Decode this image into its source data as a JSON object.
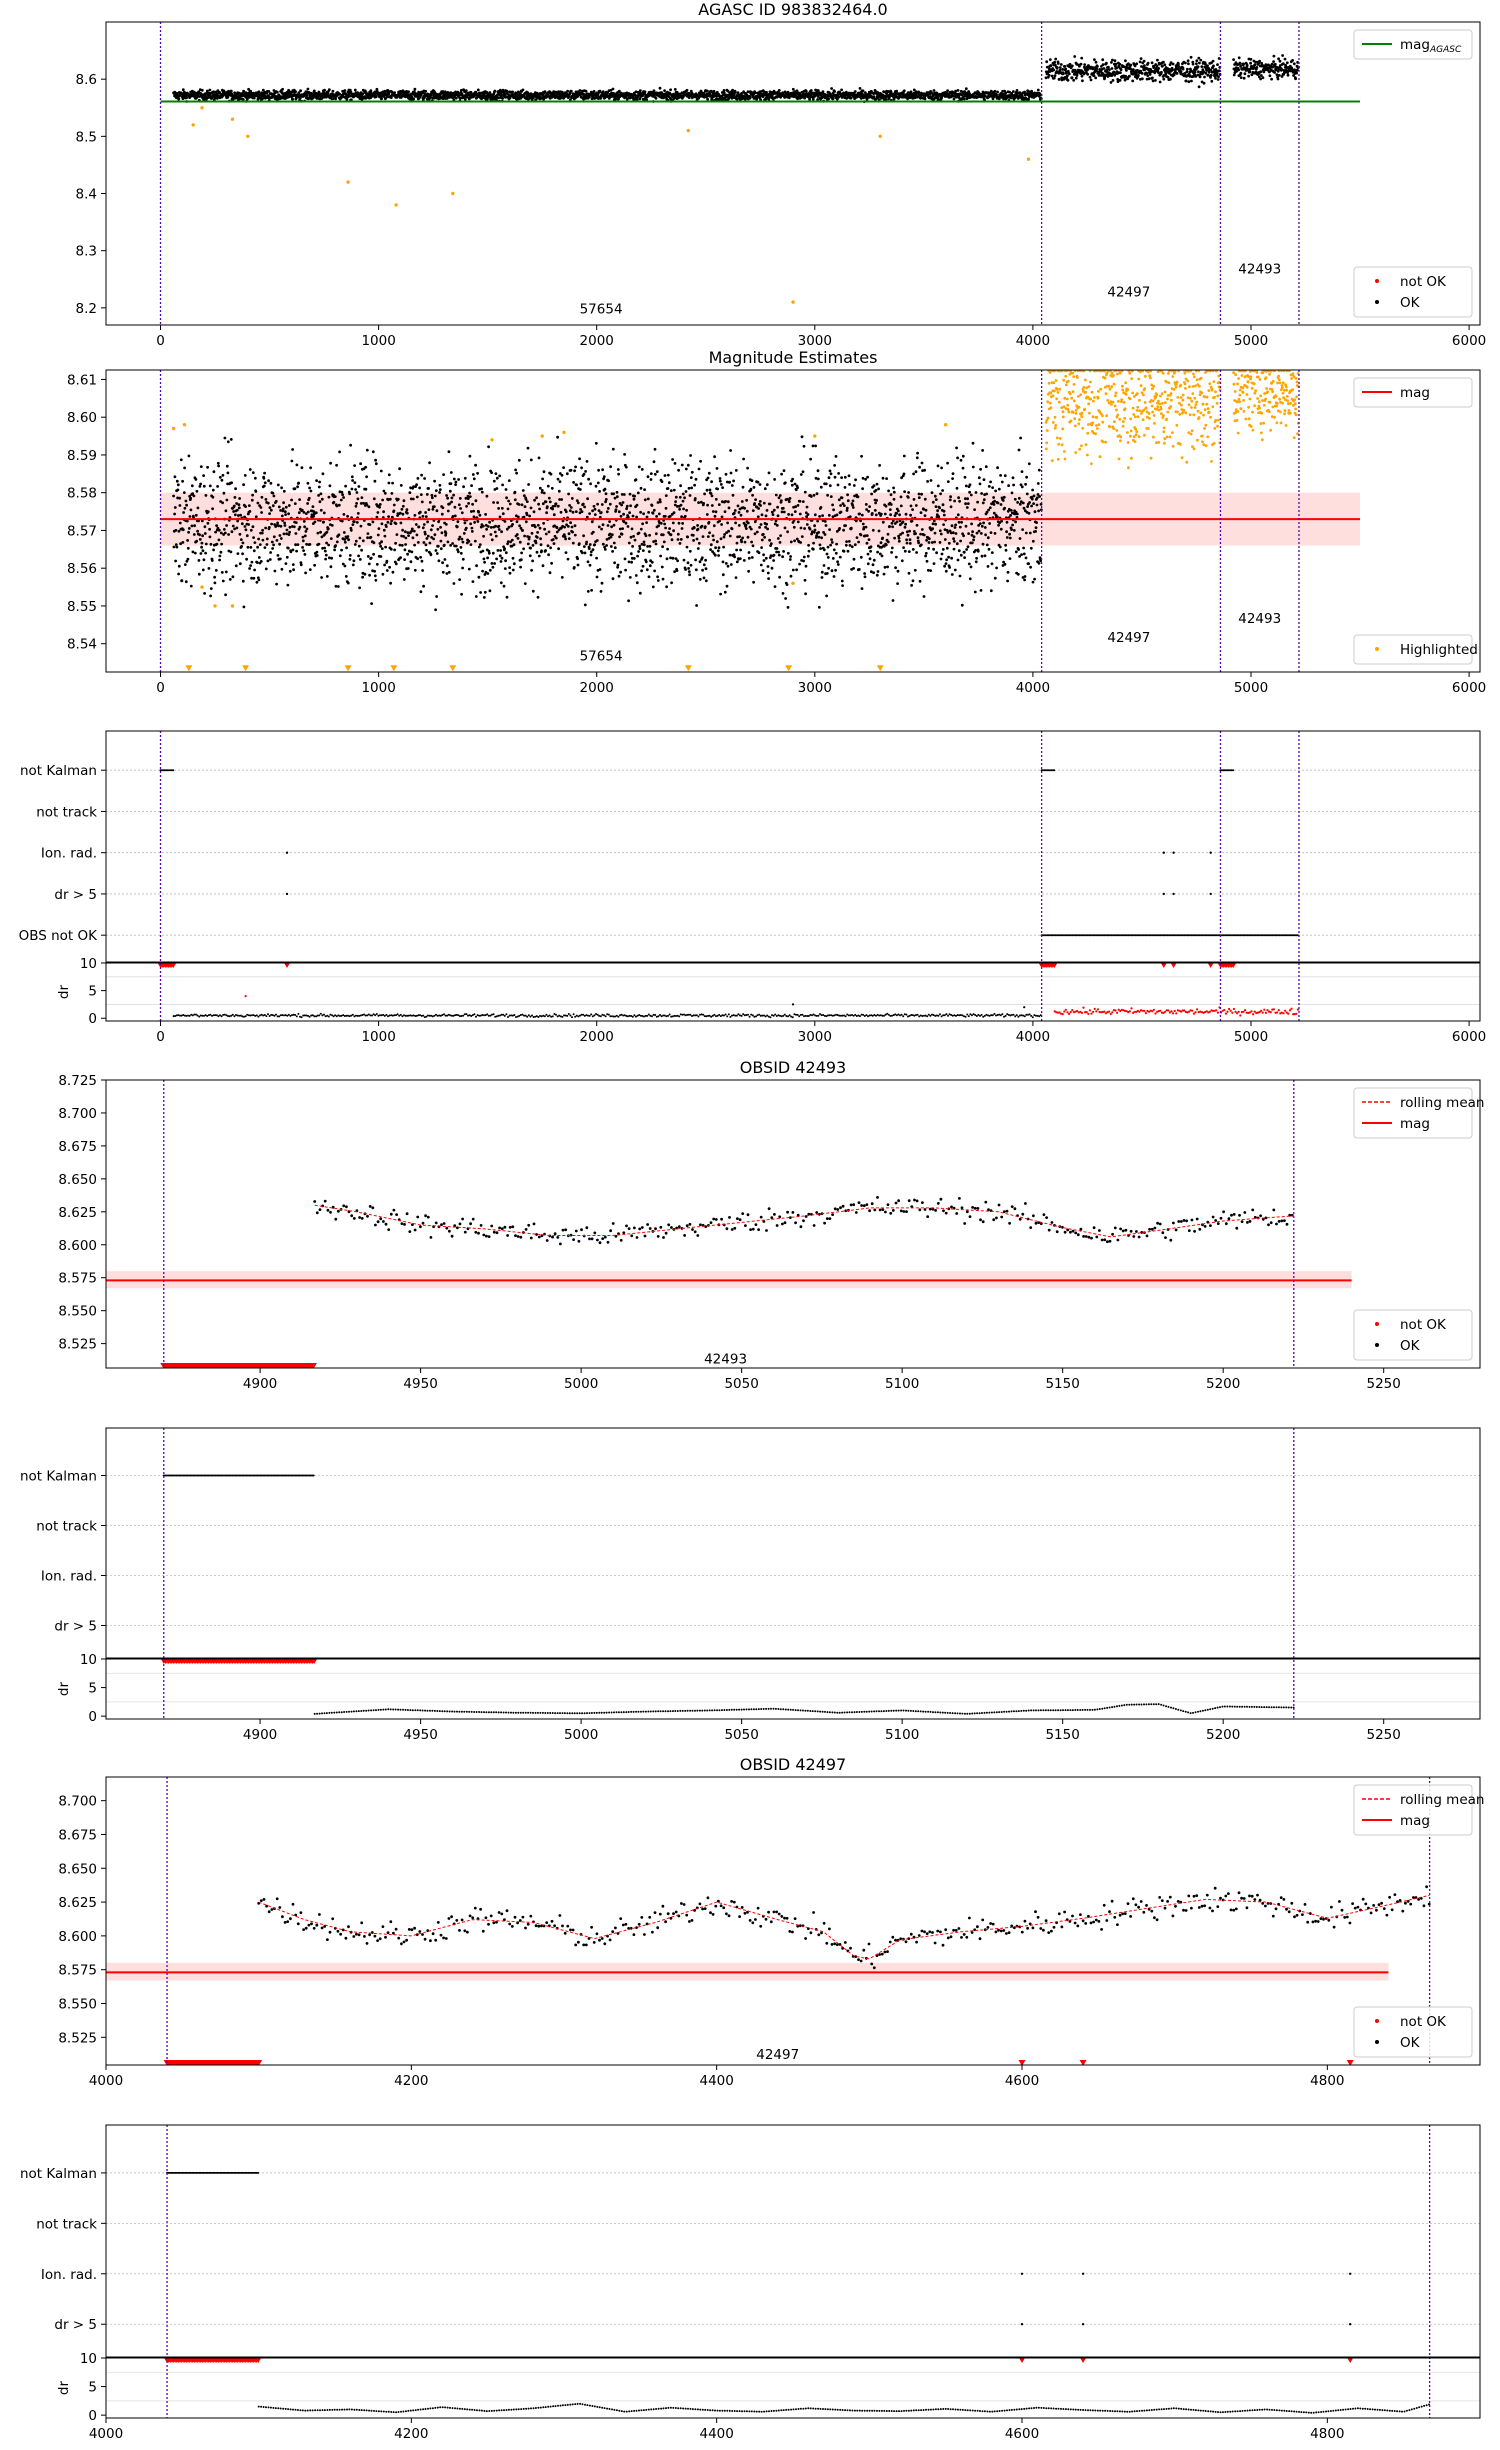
{
  "chart_data": [
    {
      "id": "agasc-overview",
      "type": "scatter",
      "title": "AGASC ID 983832464.0",
      "xlim": [
        -250,
        6050
      ],
      "ylim": [
        8.17,
        8.7
      ],
      "xticks": [
        0,
        1000,
        2000,
        3000,
        4000,
        5000,
        6000
      ],
      "yticks": [
        8.2,
        8.3,
        8.4,
        8.5,
        8.6
      ],
      "ytick_format": 1,
      "legend_upper": [
        {
          "label": "mag",
          "label_sub": "AGASC",
          "marker": "line",
          "color": "#008000"
        }
      ],
      "legend_lower": [
        {
          "label": "not OK",
          "marker": "dot",
          "color": "#ff0000"
        },
        {
          "label": "OK",
          "marker": "dot",
          "color": "#000000"
        }
      ],
      "hlines": [
        {
          "y": 8.561,
          "color": "#008000",
          "x0": 0,
          "x1": 5500
        }
      ],
      "vlines": [
        0,
        4040,
        4860,
        5220
      ],
      "obsid_labels": [
        {
          "text": "57654",
          "x": 2020,
          "y": 8.19
        },
        {
          "text": "42497",
          "x": 4440,
          "y": 8.22
        },
        {
          "text": "42493",
          "x": 5040,
          "y": 8.26
        }
      ],
      "series": [
        {
          "name": "OK",
          "color": "#000000",
          "segments": [
            {
              "x0": 60,
              "x1": 4040,
              "y0": 8.572,
              "y1": 8.572,
              "spread": 0.008
            },
            {
              "x0": 4060,
              "x1": 4860,
              "y0": 8.615,
              "y1": 8.615,
              "spread": 0.018
            },
            {
              "x0": 4920,
              "x1": 5220,
              "y0": 8.618,
              "y1": 8.618,
              "spread": 0.015
            }
          ]
        },
        {
          "name": "not OK",
          "color": "#ff0000",
          "segments": []
        },
        {
          "name": "Highlighted",
          "color": "#ffa500",
          "points": [
            [
              150,
              8.52
            ],
            [
              190,
              8.55
            ],
            [
              330,
              8.53
            ],
            [
              400,
              8.5
            ],
            [
              860,
              8.42
            ],
            [
              1080,
              8.38
            ],
            [
              1340,
              8.4
            ],
            [
              2420,
              8.51
            ],
            [
              2900,
              8.21
            ],
            [
              3300,
              8.5
            ],
            [
              3980,
              8.46
            ]
          ]
        }
      ]
    },
    {
      "id": "magnitude-estimates",
      "type": "scatter",
      "title": "Magnitude Estimates",
      "xlim": [
        -250,
        6050
      ],
      "ylim": [
        8.5325,
        8.6125
      ],
      "xticks": [
        0,
        1000,
        2000,
        3000,
        4000,
        5000,
        6000
      ],
      "yticks": [
        8.54,
        8.55,
        8.56,
        8.57,
        8.58,
        8.59,
        8.6,
        8.61
      ],
      "ytick_format": 2,
      "legend_upper": [
        {
          "label": "mag",
          "marker": "line",
          "color": "#ff0000"
        }
      ],
      "legend_lower": [
        {
          "label": "Highlighted",
          "marker": "dot",
          "color": "#ffa500"
        }
      ],
      "hlines": [
        {
          "y": 8.573,
          "color": "#ff0000",
          "x0": 0,
          "x1": 5500
        }
      ],
      "bands": [
        {
          "y0": 8.566,
          "y1": 8.58,
          "x0": 0,
          "x1": 5500,
          "color": "#ff0000",
          "opacity": 0.13
        }
      ],
      "vlines": [
        0,
        4040,
        4860,
        5220
      ],
      "obsid_labels": [
        {
          "text": "57654",
          "x": 2020,
          "y": 8.5355
        },
        {
          "text": "42497",
          "x": 4440,
          "y": 8.5405
        },
        {
          "text": "42493",
          "x": 5040,
          "y": 8.5455
        }
      ],
      "series": [
        {
          "name": "OK",
          "color": "#000000",
          "segments": [
            {
              "x0": 60,
              "x1": 4040,
              "y0": 8.572,
              "y1": 8.572,
              "spread": 0.016
            }
          ]
        },
        {
          "name": "Highlighted",
          "color": "#ffa500",
          "segments": [
            {
              "x0": 4060,
              "x1": 4860,
              "y0": 8.605,
              "y1": 8.605,
              "spread": 0.014
            },
            {
              "x0": 4920,
              "x1": 5220,
              "y0": 8.607,
              "y1": 8.607,
              "spread": 0.01
            }
          ],
          "points": [
            [
              60,
              8.597
            ],
            [
              110,
              8.598
            ],
            [
              190,
              8.555
            ],
            [
              250,
              8.55
            ],
            [
              330,
              8.55
            ],
            [
              1520,
              8.594
            ],
            [
              1750,
              8.595
            ],
            [
              1850,
              8.596
            ],
            [
              2900,
              8.556
            ],
            [
              3000,
              8.595
            ],
            [
              3600,
              8.598
            ]
          ]
        },
        {
          "name": "Highlighted-clipped",
          "color": "#ffa500",
          "marker": "triangle",
          "points": [
            [
              130,
              8.5335
            ],
            [
              390,
              8.5335
            ],
            [
              860,
              8.5335
            ],
            [
              1070,
              8.5335
            ],
            [
              1340,
              8.5335
            ],
            [
              2420,
              8.5335
            ],
            [
              2880,
              8.5335
            ],
            [
              3300,
              8.5335
            ]
          ]
        }
      ]
    },
    {
      "id": "flags-overview",
      "type": "scatter",
      "xlim": [
        -250,
        6050
      ],
      "categories": [
        "not Kalman",
        "not track",
        "Ion. rad.",
        "dr > 5",
        "OBS not OK"
      ],
      "vlines": [
        0,
        4040,
        4860,
        5220
      ],
      "flag_runs": [
        {
          "row": "not Kalman",
          "x0": 0,
          "x1": 60
        },
        {
          "row": "not Kalman",
          "x0": 4040,
          "x1": 4100
        },
        {
          "row": "not Kalman",
          "x0": 4860,
          "x1": 4920
        },
        {
          "row": "OBS not OK",
          "x0": 4040,
          "x1": 5220
        }
      ],
      "flag_points": [
        {
          "row": "Ion. rad.",
          "x": 580
        },
        {
          "row": "dr > 5",
          "x": 580
        },
        {
          "row": "Ion. rad.",
          "x": 4600
        },
        {
          "row": "Ion. rad.",
          "x": 4645
        },
        {
          "row": "Ion. rad.",
          "x": 4815
        },
        {
          "row": "dr > 5",
          "x": 4600
        },
        {
          "row": "dr > 5",
          "x": 4645
        },
        {
          "row": "dr > 5",
          "x": 4815
        }
      ],
      "dr_ylabel": "dr",
      "dr_yticks": [
        0,
        5,
        10
      ],
      "dr_ylim": [
        -0.5,
        10
      ],
      "dr_ok_segments": [
        {
          "x0": 60,
          "x1": 4040,
          "y": 0.5
        }
      ],
      "dr_notok_segments": [
        {
          "x0": 4100,
          "x1": 5220,
          "y": 1.2
        }
      ],
      "dr_clipped": [
        {
          "x0": 0,
          "x1": 60
        },
        {
          "x0": 4040,
          "x1": 4100
        },
        {
          "x0": 4860,
          "x1": 4920
        }
      ],
      "dr_clipped_points": [
        580,
        4600,
        4645,
        4815
      ],
      "dr_extra_points": [
        [
          390,
          4
        ],
        [
          2900,
          2.5
        ],
        [
          3960,
          2.0
        ]
      ],
      "xticks": [
        0,
        1000,
        2000,
        3000,
        4000,
        5000,
        6000
      ]
    },
    {
      "id": "obsid-42493",
      "type": "line",
      "title": "OBSID 42493",
      "xlim": [
        4852,
        5280
      ],
      "ylim": [
        8.5065,
        8.725
      ],
      "xticks": [
        4900,
        4950,
        5000,
        5050,
        5100,
        5150,
        5200,
        5250
      ],
      "yticks": [
        8.525,
        8.55,
        8.575,
        8.6,
        8.625,
        8.65,
        8.675,
        8.7,
        8.725
      ],
      "ytick_format": 3,
      "legend_upper": [
        {
          "label": "rolling mean",
          "marker": "dashed",
          "color": "#ff0000"
        },
        {
          "label": "mag",
          "marker": "line",
          "color": "#ff0000"
        }
      ],
      "legend_lower": [
        {
          "label": "not OK",
          "marker": "dot",
          "color": "#ff0000"
        },
        {
          "label": "OK",
          "marker": "dot",
          "color": "#000000"
        }
      ],
      "hlines": [
        {
          "y": 8.573,
          "color": "#ff0000",
          "x0": 4852,
          "x1": 5240
        }
      ],
      "bands": [
        {
          "y0": 8.567,
          "y1": 8.58,
          "x0": 4852,
          "x1": 5240,
          "color": "#ff0000",
          "opacity": 0.13
        }
      ],
      "vlines": [
        4870,
        5222
      ],
      "obsid_labels": [
        {
          "text": "42493",
          "x": 5045,
          "y": 8.51
        }
      ],
      "rolling_mean": {
        "x": [
          4917,
          4930,
          4950,
          4970,
          4990,
          5010,
          5030,
          5050,
          5070,
          5090,
          5110,
          5130,
          5150,
          5165,
          5180,
          5200,
          5222
        ],
        "y": [
          8.63,
          8.625,
          8.615,
          8.612,
          8.607,
          8.607,
          8.612,
          8.617,
          8.622,
          8.628,
          8.628,
          8.625,
          8.613,
          8.606,
          8.611,
          8.618,
          8.622
        ]
      },
      "ok_spread": 0.008,
      "notok_run": {
        "x0": 4870,
        "x1": 4917,
        "y": 8.5065
      }
    },
    {
      "id": "flags-42493",
      "type": "scatter",
      "xlim": [
        4852,
        5280
      ],
      "categories": [
        "not Kalman",
        "not track",
        "Ion. rad.",
        "dr > 5"
      ],
      "vlines": [
        4870,
        5222
      ],
      "flag_runs": [
        {
          "row": "not Kalman",
          "x0": 4870,
          "x1": 4917
        }
      ],
      "flag_points": [],
      "dr_ylabel": "dr",
      "dr_yticks": [
        0,
        5,
        10
      ],
      "dr_ylim": [
        -0.5,
        10
      ],
      "dr_ok_curve": {
        "x": [
          4917,
          4940,
          4960,
          4980,
          5000,
          5020,
          5040,
          5060,
          5080,
          5100,
          5120,
          5140,
          5160,
          5170,
          5180,
          5190,
          5200,
          5222
        ],
        "y": [
          0.4,
          1.2,
          0.8,
          0.6,
          0.5,
          0.8,
          1.0,
          1.3,
          0.6,
          1.0,
          0.4,
          1.0,
          1.1,
          2.0,
          2.1,
          0.5,
          1.7,
          1.5
        ]
      },
      "dr_clipped": [
        {
          "x0": 4870,
          "x1": 4917
        }
      ],
      "dr_clipped_points": [],
      "xticks": [
        4900,
        4950,
        5000,
        5050,
        5100,
        5150,
        5200,
        5250
      ]
    },
    {
      "id": "obsid-42497",
      "type": "line",
      "title": "OBSID 42497",
      "xlim": [
        4000,
        4900
      ],
      "ylim": [
        8.5045,
        8.7175
      ],
      "xticks": [
        4000,
        4200,
        4400,
        4600,
        4800
      ],
      "yticks": [
        8.525,
        8.55,
        8.575,
        8.6,
        8.625,
        8.65,
        8.675,
        8.7
      ],
      "ytick_format": 3,
      "legend_upper": [
        {
          "label": "rolling mean",
          "marker": "dashed",
          "color": "#ff0000"
        },
        {
          "label": "mag",
          "marker": "line",
          "color": "#ff0000"
        }
      ],
      "legend_lower": [
        {
          "label": "not OK",
          "marker": "dot",
          "color": "#ff0000"
        },
        {
          "label": "OK",
          "marker": "dot",
          "color": "#000000"
        }
      ],
      "hlines": [
        {
          "y": 8.573,
          "color": "#ff0000",
          "x0": 4000,
          "x1": 4840
        }
      ],
      "bands": [
        {
          "y0": 8.567,
          "y1": 8.58,
          "x0": 4000,
          "x1": 4840,
          "color": "#ff0000",
          "opacity": 0.13
        }
      ],
      "vlines": [
        4040,
        4867
      ],
      "obsid_labels": [
        {
          "text": "42497",
          "x": 4440,
          "y": 8.509
        }
      ],
      "rolling_mean": {
        "x": [
          4100,
          4130,
          4160,
          4200,
          4240,
          4280,
          4320,
          4360,
          4400,
          4440,
          4470,
          4490,
          4500,
          4520,
          4560,
          4600,
          4640,
          4680,
          4720,
          4760,
          4800,
          4840,
          4867
        ],
        "y": [
          8.625,
          8.612,
          8.603,
          8.6,
          8.612,
          8.61,
          8.598,
          8.61,
          8.625,
          8.612,
          8.603,
          8.585,
          8.583,
          8.597,
          8.603,
          8.607,
          8.613,
          8.62,
          8.627,
          8.625,
          8.613,
          8.623,
          8.63
        ]
      },
      "ok_spread": 0.009,
      "notok_run": {
        "x0": 4040,
        "x1": 4100,
        "y": 8.5045
      },
      "notok_points": [
        4600,
        4640,
        4815
      ]
    },
    {
      "id": "flags-42497",
      "type": "scatter",
      "xlim": [
        4000,
        4900
      ],
      "categories": [
        "not Kalman",
        "not track",
        "Ion. rad.",
        "dr > 5"
      ],
      "vlines": [
        4040,
        4867
      ],
      "flag_runs": [
        {
          "row": "not Kalman",
          "x0": 4040,
          "x1": 4100
        }
      ],
      "flag_points": [
        {
          "row": "Ion. rad.",
          "x": 4600
        },
        {
          "row": "Ion. rad.",
          "x": 4640
        },
        {
          "row": "Ion. rad.",
          "x": 4815
        },
        {
          "row": "dr > 5",
          "x": 4600
        },
        {
          "row": "dr > 5",
          "x": 4640
        },
        {
          "row": "dr > 5",
          "x": 4815
        }
      ],
      "dr_ylabel": "dr",
      "dr_yticks": [
        0,
        5,
        10
      ],
      "dr_ylim": [
        -0.5,
        10
      ],
      "dr_ok_curve": {
        "x": [
          4100,
          4130,
          4160,
          4190,
          4220,
          4250,
          4280,
          4310,
          4340,
          4370,
          4400,
          4430,
          4460,
          4490,
          4520,
          4550,
          4580,
          4610,
          4640,
          4670,
          4700,
          4730,
          4760,
          4790,
          4820,
          4850,
          4867
        ],
        "y": [
          1.5,
          0.8,
          1.0,
          0.5,
          1.4,
          0.7,
          1.2,
          2.0,
          0.6,
          1.3,
          0.8,
          0.6,
          1.2,
          0.8,
          0.7,
          1.1,
          0.6,
          1.3,
          0.9,
          0.6,
          1.2,
          0.5,
          1.0,
          0.4,
          1.2,
          0.6,
          1.9
        ]
      },
      "dr_clipped": [
        {
          "x0": 4040,
          "x1": 4100
        }
      ],
      "dr_clipped_points": [
        4600,
        4640,
        4815
      ],
      "xticks": [
        4000,
        4200,
        4400,
        4600,
        4800
      ]
    }
  ]
}
